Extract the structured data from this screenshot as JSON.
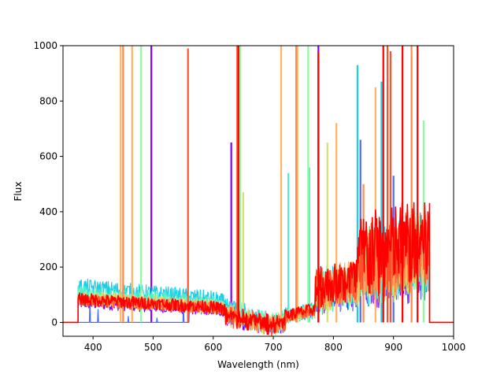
{
  "chart_data": {
    "type": "line",
    "title": "",
    "xlabel": "Wavelength (nm)",
    "ylabel": "Flux",
    "xlim": [
      350,
      1000
    ],
    "ylim": [
      -50,
      1000
    ],
    "xticks": [
      400,
      500,
      600,
      700,
      800,
      900,
      1000
    ],
    "yticks": [
      0,
      200,
      400,
      600,
      800,
      1000
    ],
    "grid": false,
    "legend": "none",
    "wavelength_range": [
      375,
      960
    ],
    "series": [
      {
        "color": "#8000ff",
        "base": 70,
        "noise": 20,
        "end_rise": 160,
        "spikes": [
          [
            497,
            1000
          ],
          [
            630,
            650
          ],
          [
            775,
            1000
          ]
        ]
      },
      {
        "color": "#4b6bff",
        "base": 75,
        "noise": 22,
        "end_rise": 170,
        "spikes": [
          [
            845,
            660
          ],
          [
            900,
            530
          ]
        ],
        "flat_segment": [
          375,
          560,
          0
        ]
      },
      {
        "color": "#1ccfe6",
        "base": 130,
        "noise": 30,
        "end_rise": 220,
        "spikes": [
          [
            840,
            930
          ],
          [
            880,
            870
          ],
          [
            930,
            960
          ]
        ]
      },
      {
        "color": "#4aeed0",
        "base": 110,
        "noise": 25,
        "end_rise": 200,
        "spikes": [
          [
            725,
            540
          ],
          [
            760,
            560
          ]
        ]
      },
      {
        "color": "#8ffba0",
        "base": 95,
        "noise": 25,
        "end_rise": 210,
        "spikes": [
          [
            480,
            1000
          ],
          [
            645,
            1000
          ],
          [
            758,
            1000
          ],
          [
            950,
            730
          ]
        ]
      },
      {
        "color": "#d4e071",
        "base": 90,
        "noise": 25,
        "end_rise": 200,
        "spikes": [
          [
            650,
            470
          ],
          [
            790,
            650
          ]
        ]
      },
      {
        "color": "#ffb360",
        "base": 85,
        "noise": 25,
        "end_rise": 230,
        "spikes": [
          [
            446,
            1000
          ],
          [
            465,
            1000
          ],
          [
            713,
            1000
          ],
          [
            740,
            1000
          ],
          [
            805,
            720
          ],
          [
            870,
            850
          ]
        ]
      },
      {
        "color": "#ff8a4a",
        "base": 80,
        "noise": 22,
        "end_rise": 220,
        "spikes": [
          [
            450,
            1000
          ],
          [
            738,
            1000
          ],
          [
            850,
            500
          ],
          [
            930,
            1000
          ]
        ]
      },
      {
        "color": "#ff4f2b",
        "base": 80,
        "noise": 22,
        "end_rise": 230,
        "spikes": [
          [
            558,
            990
          ],
          [
            640,
            1000
          ],
          [
            890,
            1000
          ],
          [
            895,
            980
          ]
        ]
      },
      {
        "color": "#ff0000",
        "base": 85,
        "noise": 22,
        "end_rise": 260,
        "spikes": [
          [
            642,
            1000
          ],
          [
            775,
            980
          ],
          [
            883,
            1000
          ],
          [
            915,
            1000
          ],
          [
            940,
            1000
          ]
        ]
      }
    ]
  }
}
